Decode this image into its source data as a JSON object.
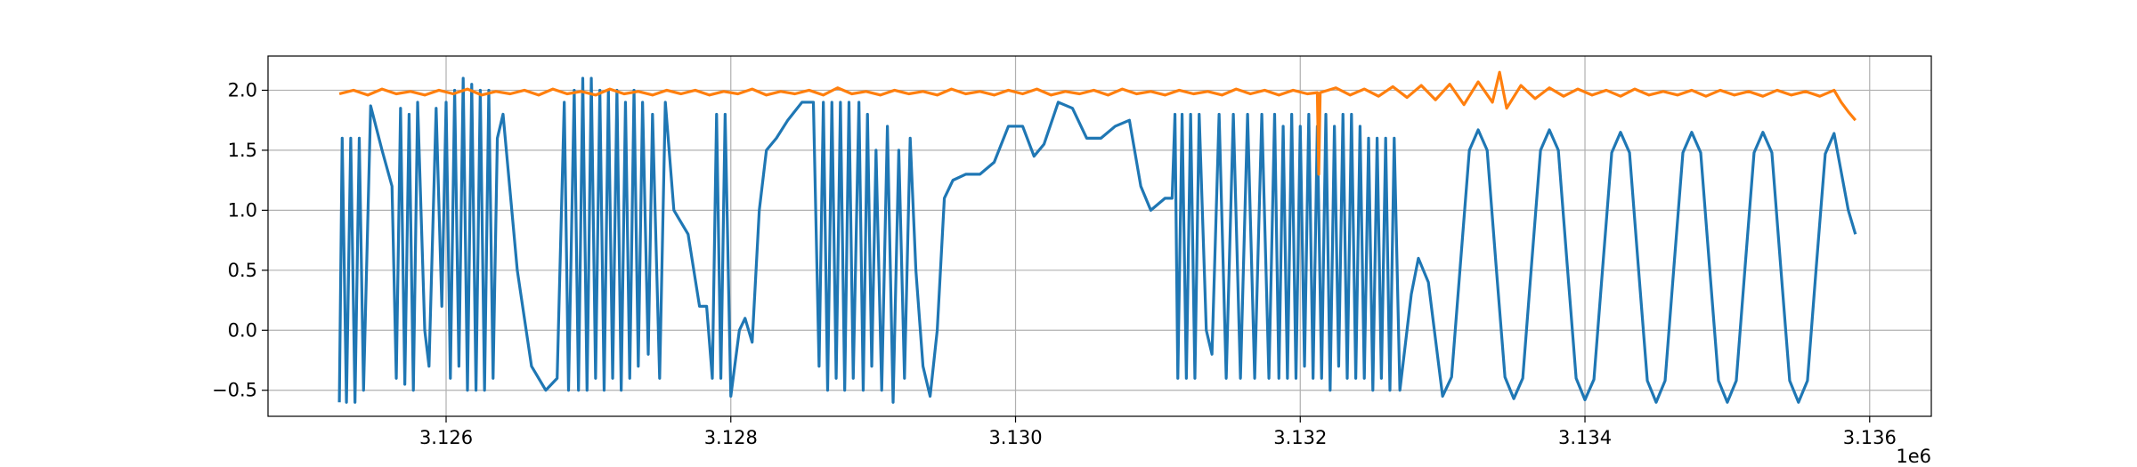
{
  "chart_data": {
    "type": "line",
    "x_offset_label": "1e6",
    "xlim": [
      3124749,
      3136433
    ],
    "ylim": [
      -0.717,
      2.285
    ],
    "xticks": [
      {
        "value": 3126000,
        "label": "3.126"
      },
      {
        "value": 3128000,
        "label": "3.128"
      },
      {
        "value": 3130000,
        "label": "3.130"
      },
      {
        "value": 3132000,
        "label": "3.132"
      },
      {
        "value": 3134000,
        "label": "3.134"
      },
      {
        "value": 3136000,
        "label": "3.136"
      }
    ],
    "yticks": [
      {
        "value": -0.5,
        "label": "−0.5"
      },
      {
        "value": 0,
        "label": "0.0"
      },
      0.5,
      {
        "value": 1,
        "label": "1.0"
      },
      1.5,
      {
        "value": 2,
        "label": "2.0"
      }
    ],
    "grid": true,
    "series": [
      {
        "color": "#1f77b4",
        "x": [
          3125250,
          3125270,
          3125300,
          3125330,
          3125360,
          3125390,
          3125420,
          3125470,
          3125550,
          3125620,
          3125650,
          3125680,
          3125710,
          3125740,
          3125770,
          3125800,
          3125850,
          3125880,
          3125930,
          3125970,
          3126000,
          3126030,
          3126060,
          3126090,
          3126120,
          3126150,
          3126180,
          3126210,
          3126240,
          3126270,
          3126300,
          3126330,
          3126360,
          3126400,
          3126500,
          3126600,
          3126700,
          3126780,
          3126830,
          3126860,
          3126900,
          3126930,
          3126960,
          3126990,
          3127020,
          3127050,
          3127080,
          3127110,
          3127140,
          3127170,
          3127200,
          3127230,
          3127260,
          3127290,
          3127320,
          3127350,
          3127380,
          3127420,
          3127450,
          3127500,
          3127540,
          3127600,
          3127700,
          3127780,
          3127830,
          3127870,
          3127900,
          3127930,
          3127960,
          3128000,
          3128060,
          3128100,
          3128150,
          3128200,
          3128250,
          3128320,
          3128400,
          3128500,
          3128580,
          3128620,
          3128650,
          3128680,
          3128710,
          3128740,
          3128770,
          3128800,
          3128830,
          3128860,
          3128900,
          3128930,
          3128960,
          3128990,
          3129020,
          3129060,
          3129100,
          3129140,
          3129180,
          3129220,
          3129260,
          3129300,
          3129350,
          3129400,
          3129450,
          3129500,
          3129560,
          3129650,
          3129750,
          3129850,
          3129950,
          3130050,
          3130130,
          3130200,
          3130300,
          3130400,
          3130500,
          3130600,
          3130700,
          3130800,
          3130880,
          3130950,
          3131050,
          3131100,
          3131120,
          3131140,
          3131170,
          3131200,
          3131230,
          3131260,
          3131290,
          3131340,
          3131380,
          3131430,
          3131480,
          3131530,
          3131580,
          3131630,
          3131680,
          3131730,
          3131780,
          3131820,
          3131850,
          3131880,
          3131910,
          3131940,
          3131970,
          3132000,
          3132030,
          3132060,
          3132090,
          3132120,
          3132150,
          3132180,
          3132210,
          3132240,
          3132270,
          3132300,
          3132330,
          3132360,
          3132390,
          3132420,
          3132450,
          3132480,
          3132510,
          3132540,
          3132570,
          3132600,
          3132630,
          3132660,
          3132700,
          3132780,
          3132830,
          3132900,
          3133000,
          3133063,
          3133125,
          3133188,
          3133250,
          3133313,
          3133375,
          3133438,
          3133500,
          3133563,
          3133625,
          3133688,
          3133750,
          3133813,
          3133875,
          3133938,
          3134000,
          3134063,
          3134125,
          3134188,
          3134250,
          3134313,
          3134375,
          3134438,
          3134500,
          3134563,
          3134625,
          3134688,
          3134750,
          3134813,
          3134875,
          3134938,
          3135000,
          3135063,
          3135125,
          3135188,
          3135250,
          3135313,
          3135375,
          3135438,
          3135500,
          3135563,
          3135625,
          3135688,
          3135750,
          3135850,
          3135900
        ],
        "values": [
          -0.6,
          1.6,
          -0.6,
          1.6,
          -0.6,
          1.6,
          -0.5,
          1.87,
          1.5,
          1.2,
          -0.4,
          1.85,
          -0.45,
          1.8,
          -0.5,
          1.9,
          0.0,
          -0.3,
          1.85,
          0.2,
          1.9,
          -0.4,
          2.0,
          -0.3,
          2.1,
          -0.5,
          2.05,
          -0.5,
          2.0,
          -0.5,
          2.0,
          -0.4,
          1.6,
          1.8,
          0.5,
          -0.3,
          -0.5,
          -0.4,
          1.9,
          -0.5,
          2.0,
          -0.5,
          2.1,
          -0.5,
          2.1,
          -0.4,
          2.0,
          -0.5,
          2.0,
          -0.4,
          2.0,
          -0.5,
          1.9,
          -0.4,
          2.0,
          -0.3,
          1.9,
          -0.2,
          1.8,
          -0.4,
          1.9,
          1.0,
          0.8,
          0.2,
          0.2,
          -0.4,
          1.8,
          -0.4,
          1.8,
          -0.55,
          0.0,
          0.1,
          -0.1,
          1.0,
          1.5,
          1.6,
          1.75,
          1.9,
          1.9,
          -0.3,
          1.9,
          -0.5,
          1.9,
          -0.4,
          1.9,
          -0.5,
          1.9,
          -0.4,
          1.9,
          -0.5,
          1.8,
          -0.3,
          1.5,
          -0.5,
          1.7,
          -0.6,
          1.5,
          -0.4,
          1.6,
          0.5,
          -0.3,
          -0.55,
          0.0,
          1.1,
          1.25,
          1.3,
          1.3,
          1.4,
          1.7,
          1.7,
          1.45,
          1.55,
          1.9,
          1.85,
          1.6,
          1.6,
          1.7,
          1.75,
          1.2,
          1.0,
          1.1,
          1.1,
          1.8,
          -0.4,
          1.8,
          -0.4,
          1.8,
          -0.4,
          1.8,
          0.0,
          -0.2,
          1.8,
          -0.4,
          1.8,
          -0.4,
          1.8,
          -0.4,
          1.8,
          -0.4,
          1.8,
          -0.4,
          1.7,
          -0.4,
          1.8,
          -0.4,
          1.7,
          -0.3,
          1.8,
          -0.4,
          1.7,
          -0.4,
          1.8,
          -0.5,
          1.7,
          -0.3,
          1.8,
          -0.4,
          1.8,
          -0.4,
          1.7,
          -0.4,
          1.6,
          -0.5,
          1.6,
          -0.4,
          1.6,
          -0.5,
          1.6,
          -0.5,
          0.3,
          0.6,
          0.4,
          -0.55,
          -0.39,
          0.55,
          1.5,
          1.67,
          1.5,
          0.55,
          -0.39,
          -0.57,
          -0.4,
          0.55,
          1.5,
          1.67,
          1.5,
          0.55,
          -0.4,
          -0.58,
          -0.41,
          0.53,
          1.48,
          1.65,
          1.48,
          0.53,
          -0.42,
          -0.6,
          -0.42,
          0.53,
          1.48,
          1.65,
          1.48,
          0.53,
          -0.42,
          -0.6,
          -0.42,
          0.53,
          1.48,
          1.65,
          1.48,
          0.53,
          -0.42,
          -0.6,
          -0.42,
          0.53,
          1.47,
          1.64,
          1.0,
          0.8
        ]
      },
      {
        "color": "#ff7f0e",
        "x": [
          3125250,
          3125350,
          3125450,
          3125550,
          3125650,
          3125750,
          3125850,
          3125950,
          3126050,
          3126150,
          3126250,
          3126350,
          3126450,
          3126550,
          3126650,
          3126750,
          3126850,
          3126950,
          3127050,
          3127150,
          3127250,
          3127350,
          3127450,
          3127550,
          3127650,
          3127750,
          3127850,
          3127950,
          3128050,
          3128150,
          3128250,
          3128350,
          3128450,
          3128550,
          3128650,
          3128750,
          3128850,
          3128950,
          3129050,
          3129150,
          3129250,
          3129350,
          3129450,
          3129550,
          3129650,
          3129750,
          3129850,
          3129950,
          3130050,
          3130150,
          3130250,
          3130350,
          3130450,
          3130550,
          3130650,
          3130750,
          3130850,
          3130950,
          3131050,
          3131150,
          3131250,
          3131350,
          3131450,
          3131550,
          3131650,
          3131750,
          3131850,
          3131950,
          3132050,
          3132120,
          3132130,
          3132140,
          3132250,
          3132350,
          3132450,
          3132550,
          3132650,
          3132750,
          3132850,
          3132950,
          3133050,
          3133150,
          3133250,
          3133350,
          3133400,
          3133450,
          3133550,
          3133650,
          3133750,
          3133850,
          3133950,
          3134050,
          3134150,
          3134250,
          3134350,
          3134450,
          3134550,
          3134650,
          3134750,
          3134850,
          3134950,
          3135050,
          3135150,
          3135250,
          3135350,
          3135450,
          3135550,
          3135650,
          3135750,
          3135800,
          3135850,
          3135900
        ],
        "values": [
          1.97,
          2.0,
          1.96,
          2.01,
          1.97,
          1.99,
          1.96,
          2.0,
          1.97,
          2.01,
          1.96,
          1.99,
          1.97,
          2.0,
          1.96,
          2.01,
          1.97,
          1.99,
          1.96,
          2.01,
          1.97,
          1.99,
          1.96,
          2.0,
          1.97,
          2.0,
          1.96,
          1.99,
          1.97,
          2.01,
          1.96,
          1.99,
          1.97,
          2.0,
          1.96,
          2.02,
          1.97,
          1.99,
          1.96,
          2.0,
          1.97,
          1.99,
          1.96,
          2.01,
          1.97,
          1.99,
          1.96,
          2.0,
          1.97,
          2.01,
          1.96,
          1.99,
          1.97,
          2.0,
          1.96,
          2.01,
          1.97,
          1.99,
          1.96,
          2.0,
          1.97,
          1.99,
          1.96,
          2.01,
          1.97,
          2.0,
          1.96,
          2.0,
          1.97,
          1.98,
          1.3,
          1.98,
          2.02,
          1.96,
          2.01,
          1.95,
          2.03,
          1.94,
          2.04,
          1.92,
          2.05,
          1.88,
          2.07,
          1.9,
          2.15,
          1.85,
          2.04,
          1.93,
          2.02,
          1.95,
          2.01,
          1.96,
          2.0,
          1.95,
          2.01,
          1.96,
          1.99,
          1.96,
          2.0,
          1.95,
          2.0,
          1.96,
          1.99,
          1.95,
          2.0,
          1.96,
          1.99,
          1.95,
          2.0,
          1.9,
          1.82,
          1.75
        ]
      }
    ]
  }
}
